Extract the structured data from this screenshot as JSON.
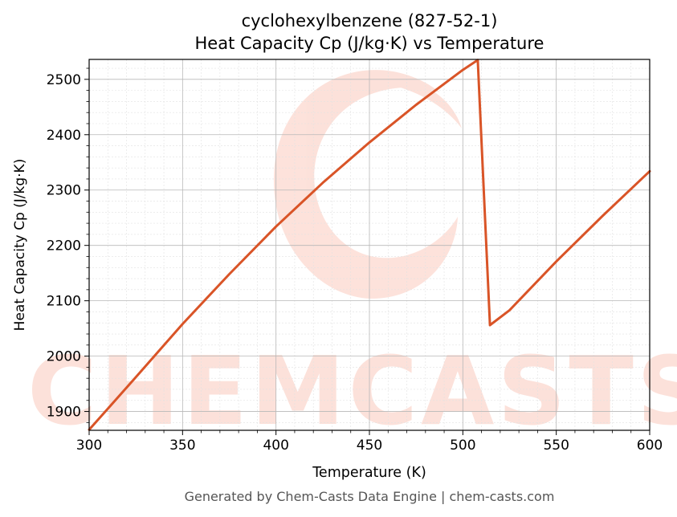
{
  "chart_data": {
    "type": "line",
    "title": "cyclohexylbenzene (827-52-1)",
    "subtitle": "Heat Capacity Cp (J/kg·K) vs Temperature",
    "xlabel": "Temperature (K)",
    "ylabel": "Heat Capacity Cp (J/kg·K)",
    "xlim": [
      300,
      600
    ],
    "ylim": [
      1866,
      2536
    ],
    "x_ticks": [
      300,
      350,
      400,
      450,
      500,
      550,
      600
    ],
    "y_ticks": [
      1900,
      2000,
      2100,
      2200,
      2300,
      2400,
      2500
    ],
    "grid": true,
    "line_color": "#d95427",
    "series": [
      {
        "x": [
          300,
          325,
          350,
          375,
          400,
          425,
          450,
          475,
          500,
          508,
          514.5,
          525,
          550,
          575,
          600
        ],
        "values": [
          1867,
          1962,
          2058,
          2148,
          2234,
          2313,
          2386,
          2454,
          2517,
          2535,
          2056,
          2083,
          2171,
          2254,
          2334
        ]
      }
    ],
    "watermark": "CHEMCASTS",
    "footer": "Generated by Chem-Casts Data Engine | chem-casts.com"
  }
}
